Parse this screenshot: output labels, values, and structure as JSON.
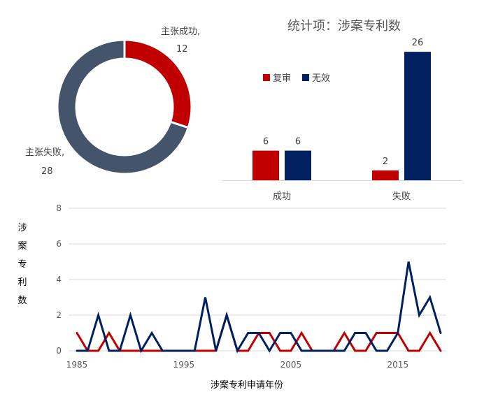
{
  "colors": {
    "fuxun": "#c00000",
    "wuxiao": "#002060",
    "fail": "#44546a",
    "grid": "#d9d9d9"
  },
  "chart_data": [
    {
      "type": "pie",
      "subtype": "donut",
      "slices": [
        {
          "name": "主张成功",
          "value": 12,
          "label": "主张成功,",
          "color": "#c00000"
        },
        {
          "name": "主张失败",
          "value": 28,
          "label": "主张失败,",
          "color": "#44546a"
        }
      ]
    },
    {
      "type": "bar",
      "title": "统计项：涉案专利数",
      "categories": [
        "成功",
        "失败"
      ],
      "series": [
        {
          "name": "复审",
          "color": "#c00000",
          "values": [
            6,
            2
          ]
        },
        {
          "name": "无效",
          "color": "#002060",
          "values": [
            6,
            26
          ]
        }
      ],
      "ylim": [
        0,
        28
      ],
      "legend": "top-left"
    },
    {
      "type": "line",
      "ylabel": "涉案专利数",
      "xlabel": "涉案专利申请年份",
      "ylim": [
        0,
        8
      ],
      "yticks": [
        "0",
        "2",
        "4",
        "6",
        "8"
      ],
      "xlim": [
        1985,
        2019
      ],
      "xticks": [
        "1985",
        "1995",
        "2005",
        "2015"
      ],
      "x": [
        1985,
        1986,
        1987,
        1988,
        1989,
        1990,
        1991,
        1992,
        1993,
        1994,
        1995,
        1996,
        1997,
        1998,
        1999,
        2000,
        2001,
        2002,
        2003,
        2004,
        2005,
        2006,
        2007,
        2008,
        2009,
        2010,
        2011,
        2012,
        2013,
        2014,
        2015,
        2016,
        2017,
        2018,
        2019
      ],
      "series": [
        {
          "name": "复审",
          "color": "#c00000",
          "values": [
            1,
            0,
            0,
            1,
            0,
            0,
            0,
            0,
            0,
            0,
            0,
            0,
            0,
            0,
            2,
            0,
            0,
            1,
            1,
            0,
            0,
            1,
            0,
            0,
            0,
            1,
            0,
            0,
            1,
            1,
            1,
            0,
            0,
            1,
            0
          ]
        },
        {
          "name": "无效",
          "color": "#002060",
          "values": [
            0,
            0,
            2,
            0,
            0,
            2,
            0,
            1,
            0,
            0,
            0,
            0,
            3,
            0,
            2,
            0,
            1,
            1,
            0,
            1,
            1,
            0,
            0,
            0,
            0,
            0,
            1,
            1,
            0,
            0,
            1,
            5,
            2,
            3,
            1
          ]
        }
      ]
    }
  ]
}
